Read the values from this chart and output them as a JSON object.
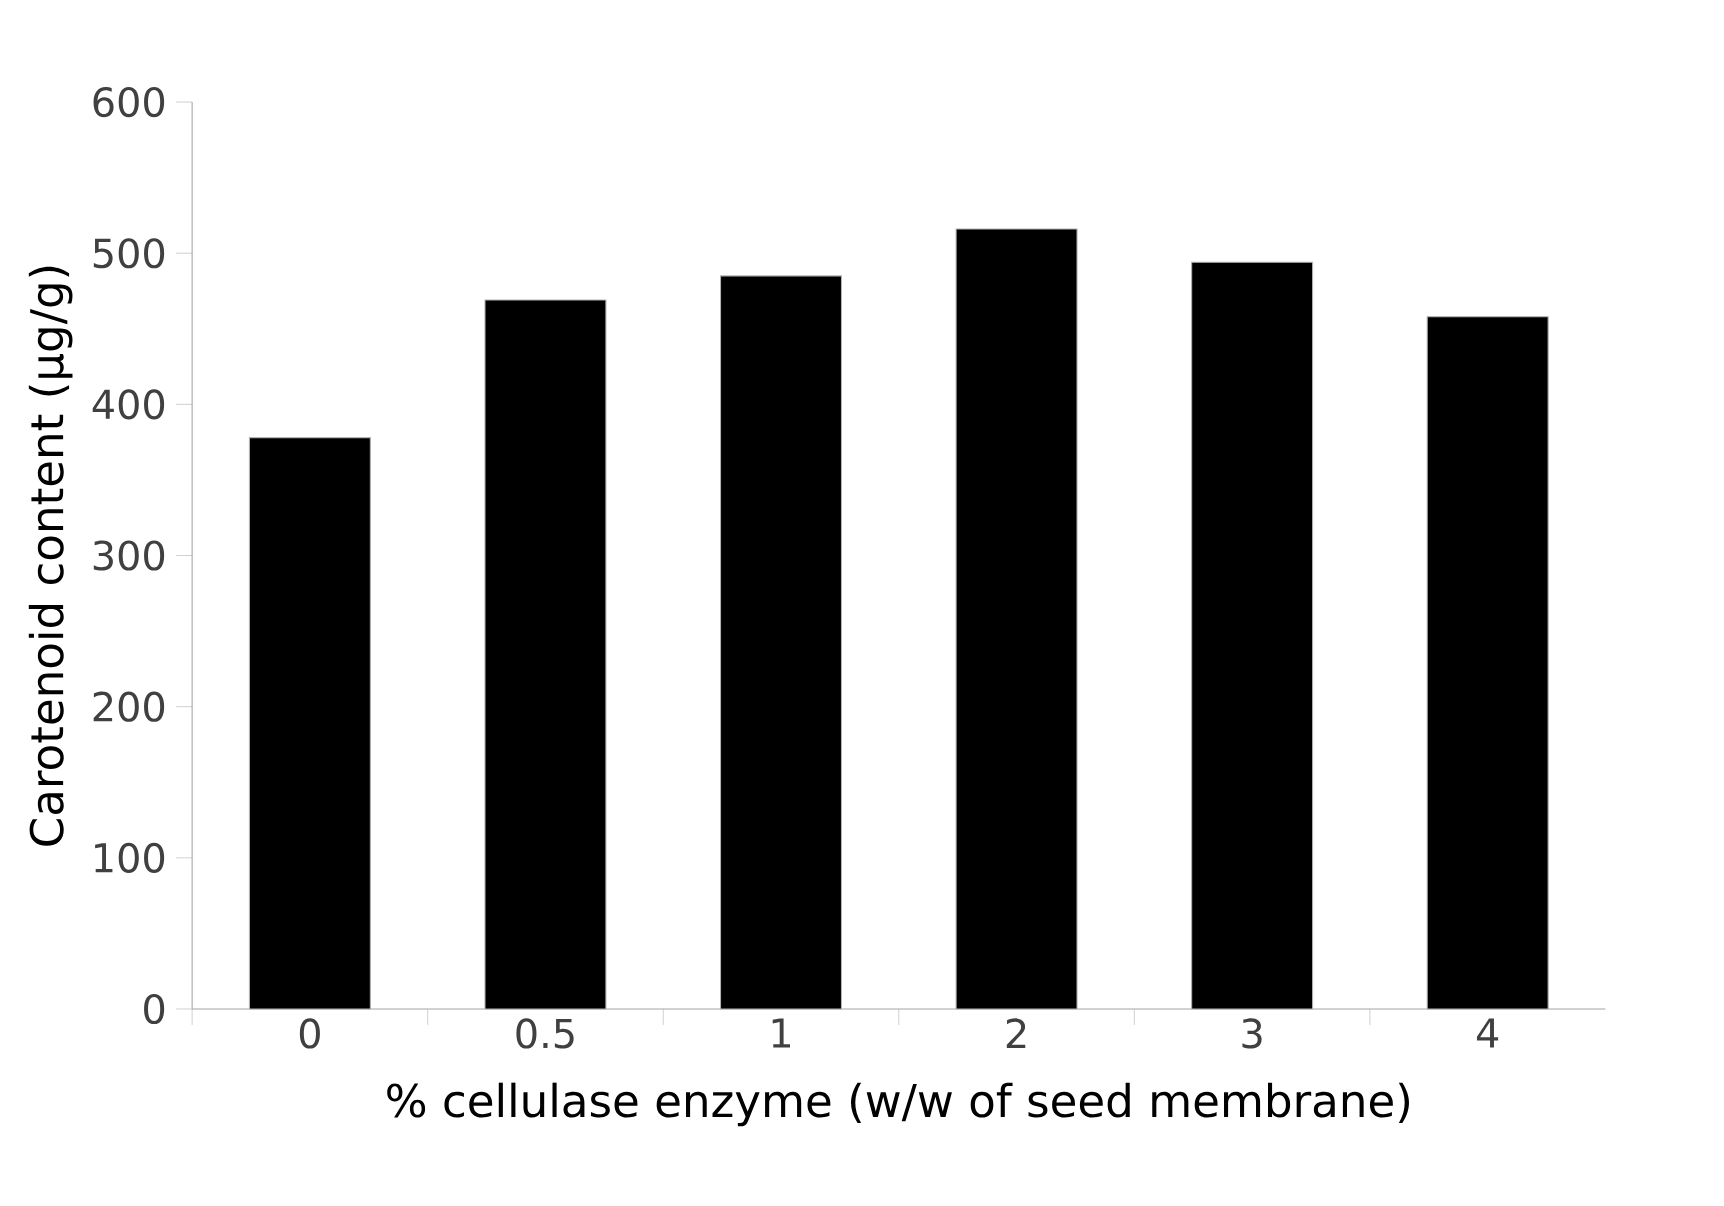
{
  "chart_data": {
    "type": "bar",
    "xlabel": "% cellulase enzyme (w/w of seed membrane)",
    "ylabel": "Carotenoid content (µg/g)",
    "categories": [
      "0",
      "0.5",
      "1",
      "2",
      "3",
      "4"
    ],
    "values": [
      378,
      469,
      485,
      516,
      494,
      458
    ],
    "color": "#000000",
    "ylim": [
      0,
      600
    ],
    "yticks": [
      0,
      100,
      200,
      300,
      400,
      500,
      600
    ],
    "grid": false
  }
}
